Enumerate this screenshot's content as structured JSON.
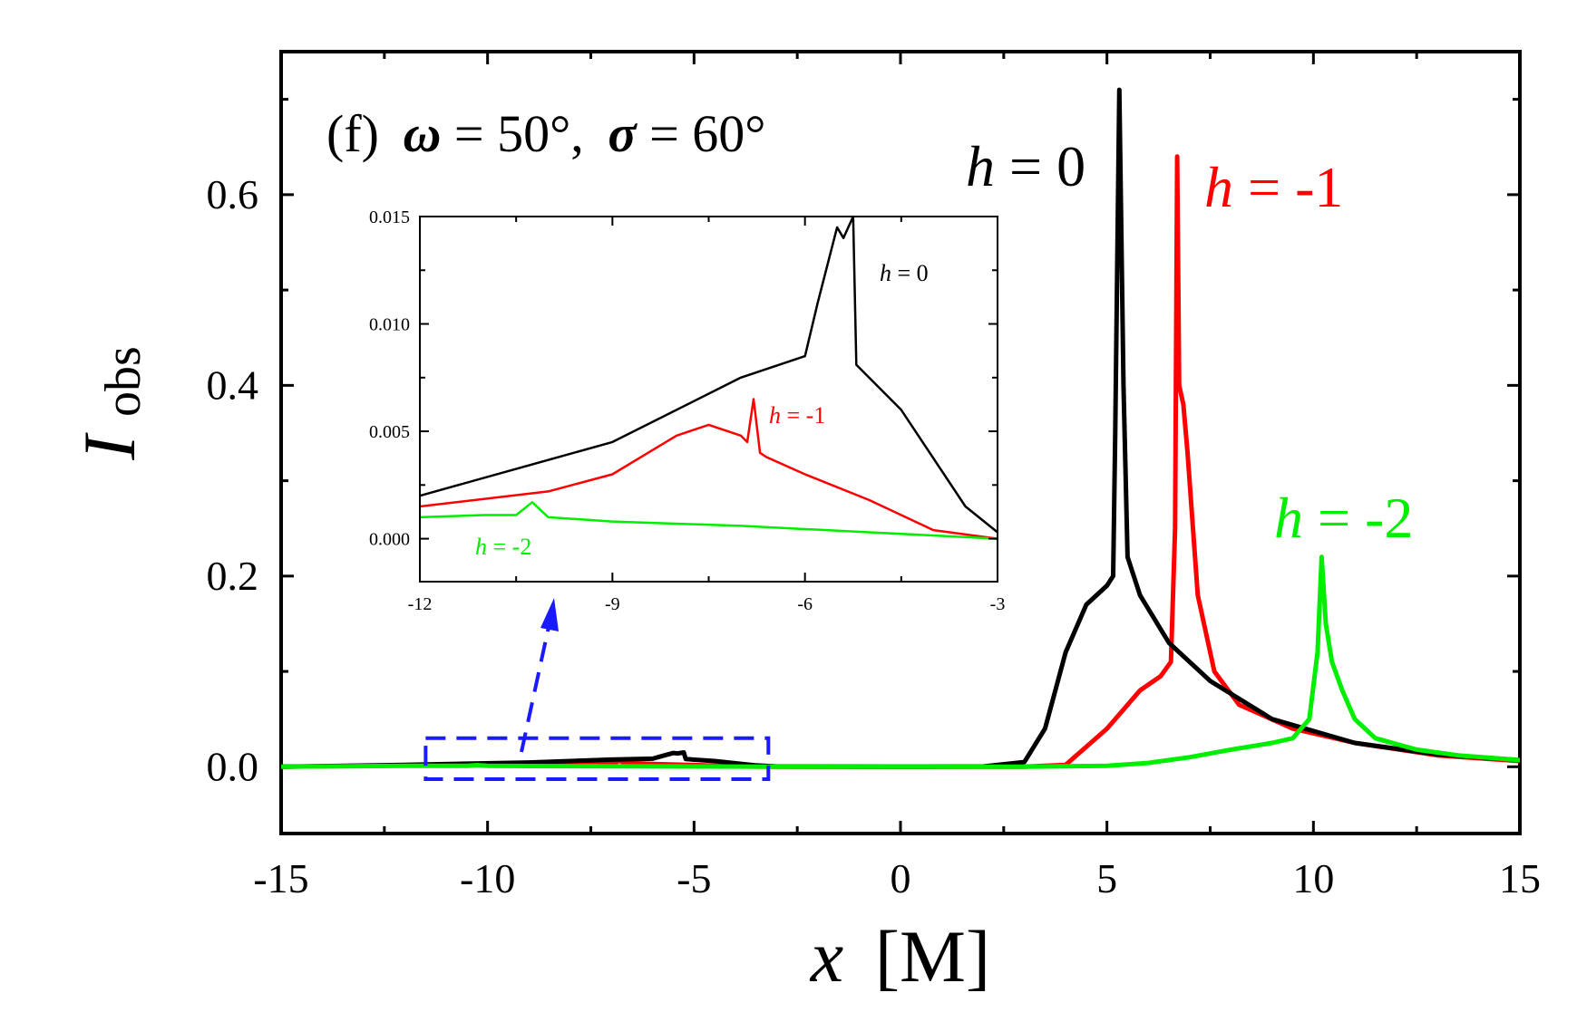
{
  "chart_data": [
    {
      "type": "line",
      "panel_label": "(f)",
      "title_parts": {
        "omega_symbol": "ω",
        "omega_value": "= 50°,",
        "sigma_symbol": "σ",
        "sigma_value": "= 60°"
      },
      "xlabel_symbol": "x",
      "xlabel_unit": "[M]",
      "ylabel_main": "I",
      "ylabel_sub": "obs",
      "xlim": [
        -15,
        15
      ],
      "ylim": [
        -0.07,
        0.75
      ],
      "xticks": [
        -15,
        -10,
        -5,
        0,
        5,
        10,
        15
      ],
      "xtick_labels": [
        "-15",
        "-10",
        "-5",
        "0",
        "5",
        "10",
        "15"
      ],
      "yticks": [
        0.0,
        0.2,
        0.4,
        0.6
      ],
      "ytick_labels": [
        "0.0",
        "0.2",
        "0.4",
        "0.6"
      ],
      "grid": false,
      "series": [
        {
          "name": "h = 0",
          "symbol": "h",
          "value": "= 0",
          "color": "#000000",
          "x": [
            -15,
            -12,
            -9,
            -7,
            -6,
            -5.8,
            -5.5,
            -5.4,
            -5.25,
            -5.2,
            -4.5,
            -3.5,
            -3,
            0,
            2,
            3,
            3.5,
            4,
            4.5,
            5,
            5.15,
            5.2,
            5.3,
            5.4,
            5.5,
            5.8,
            6.5,
            7.5,
            9,
            11,
            13,
            15
          ],
          "y": [
            0,
            0.002,
            0.0045,
            0.0075,
            0.0085,
            0.011,
            0.0145,
            0.014,
            0.015,
            0.0081,
            0.006,
            0.0015,
            0.0003,
            0,
            0.0003,
            0.005,
            0.04,
            0.12,
            0.17,
            0.19,
            0.2,
            0.35,
            0.71,
            0.4,
            0.22,
            0.18,
            0.13,
            0.09,
            0.05,
            0.025,
            0.013,
            0.007
          ]
        },
        {
          "name": "h = -1",
          "symbol": "h",
          "value": "= -1",
          "color": "#ff0000",
          "x": [
            -15,
            -12,
            -10,
            -9,
            -8,
            -7.5,
            -7,
            -6.9,
            -6.8,
            -6.7,
            -6.6,
            -6,
            -5,
            -4,
            -3,
            0,
            3,
            4,
            5,
            5.8,
            6.3,
            6.55,
            6.65,
            6.7,
            6.75,
            6.85,
            6.95,
            7.2,
            7.6,
            8.2,
            9.5,
            11,
            13,
            15
          ],
          "y": [
            0,
            0.0015,
            0.0022,
            0.003,
            0.0048,
            0.0053,
            0.0048,
            0.0045,
            0.0065,
            0.004,
            0.0038,
            0.003,
            0.0018,
            0.0004,
            0,
            0,
            0,
            0.002,
            0.04,
            0.08,
            0.095,
            0.11,
            0.25,
            0.64,
            0.4,
            0.38,
            0.33,
            0.18,
            0.1,
            0.065,
            0.04,
            0.025,
            0.012,
            0.006
          ]
        },
        {
          "name": "h = -2",
          "symbol": "h",
          "value": "= -2",
          "color": "#00ee00",
          "x": [
            -15,
            -12,
            -11,
            -10.5,
            -10.25,
            -10,
            -9,
            -7,
            -5,
            -3,
            0,
            3,
            5,
            6,
            7,
            8,
            9,
            9.5,
            9.9,
            10.1,
            10.2,
            10.3,
            10.45,
            10.7,
            11,
            11.5,
            12.5,
            13.5,
            15
          ],
          "y": [
            0,
            0.001,
            0.0011,
            0.0011,
            0.0017,
            0.001,
            0.0008,
            0.0006,
            0.0003,
            0,
            0,
            0,
            0.001,
            0.004,
            0.01,
            0.018,
            0.025,
            0.03,
            0.05,
            0.12,
            0.22,
            0.15,
            0.11,
            0.08,
            0.05,
            0.03,
            0.018,
            0.012,
            0.007
          ]
        }
      ],
      "annotation": {
        "type": "dashed-rectangle",
        "color": "#1a1aff",
        "x_range": [
          -11.5,
          -3.2
        ],
        "y_range": [
          -0.013,
          0.03
        ]
      }
    },
    {
      "type": "line",
      "role": "inset",
      "xlim": [
        -12,
        -3
      ],
      "ylim": [
        -0.002,
        0.015
      ],
      "xticks": [
        -12,
        -9,
        -6,
        -3
      ],
      "xtick_labels": [
        "-12",
        "-9",
        "-6",
        "-3"
      ],
      "yticks": [
        0.0,
        0.005,
        0.01,
        0.015
      ],
      "ytick_labels": [
        "0.000",
        "0.005",
        "0.010",
        "0.015"
      ],
      "series_labels": [
        {
          "symbol": "h",
          "value": "= 0",
          "color": "#000000"
        },
        {
          "symbol": "h",
          "value": "= -1",
          "color": "#ff0000"
        },
        {
          "symbol": "h",
          "value": "= -2",
          "color": "#00ee00"
        }
      ]
    }
  ]
}
